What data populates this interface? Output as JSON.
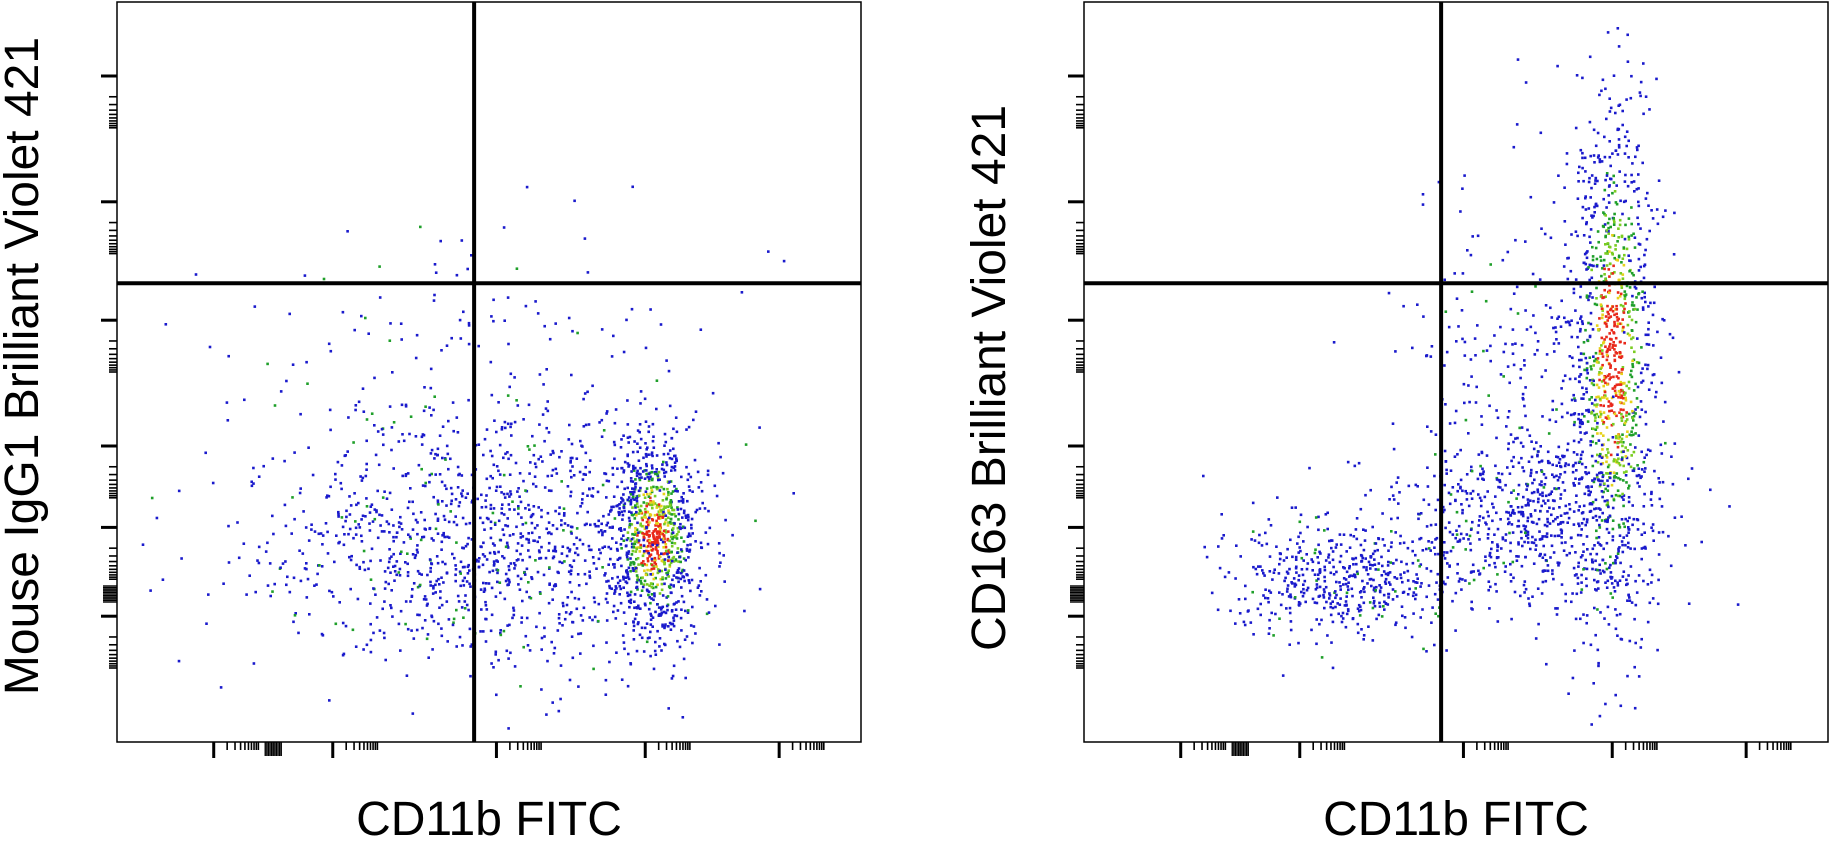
{
  "colors": {
    "low": "#1a1acc",
    "mid_low": "#1f9f2a",
    "mid": "#7acc22",
    "mid_high": "#e6d21a",
    "high": "#e8281a",
    "axes": "#000000"
  },
  "chart_data": [
    {
      "type": "scatter",
      "title": "",
      "xlabel": "CD11b FITC",
      "ylabel": "Mouse IgG1 Brilliant Violet 421",
      "xscale": "biexponential",
      "yscale": "biexponential",
      "grid": false,
      "legend": "none",
      "quadrant_gates": {
        "x": 0.48,
        "y": 0.62
      },
      "clusters": [
        {
          "name": "",
          "cx": 0.72,
          "cy": 0.28,
          "sx": 0.03,
          "sy": 0.07,
          "n": 900,
          "density": "high"
        },
        {
          "name": "",
          "cx": 0.58,
          "cy": 0.27,
          "sx": 0.1,
          "sy": 0.09,
          "n": 600,
          "density": "low"
        },
        {
          "name": "",
          "cx": 0.38,
          "cy": 0.26,
          "sx": 0.13,
          "sy": 0.07,
          "n": 500,
          "density": "low"
        },
        {
          "name": "",
          "cx": 0.45,
          "cy": 0.45,
          "sx": 0.17,
          "sy": 0.12,
          "n": 250,
          "density": "low"
        }
      ]
    },
    {
      "type": "scatter",
      "title": "",
      "xlabel": "CD11b FITC",
      "ylabel": "CD163 Brilliant Violet 421",
      "xscale": "biexponential",
      "yscale": "biexponential",
      "grid": false,
      "legend": "none",
      "quadrant_gates": {
        "x": 0.48,
        "y": 0.62
      },
      "clusters": [
        {
          "name": "",
          "cx": 0.71,
          "cy": 0.52,
          "sx": 0.028,
          "sy": 0.18,
          "n": 1100,
          "density": "high"
        },
        {
          "name": "",
          "cx": 0.6,
          "cy": 0.3,
          "sx": 0.09,
          "sy": 0.06,
          "n": 650,
          "density": "low"
        },
        {
          "name": "",
          "cx": 0.34,
          "cy": 0.22,
          "sx": 0.08,
          "sy": 0.04,
          "n": 500,
          "density": "low"
        },
        {
          "name": "",
          "cx": 0.58,
          "cy": 0.5,
          "sx": 0.08,
          "sy": 0.14,
          "n": 250,
          "density": "low"
        }
      ]
    }
  ]
}
